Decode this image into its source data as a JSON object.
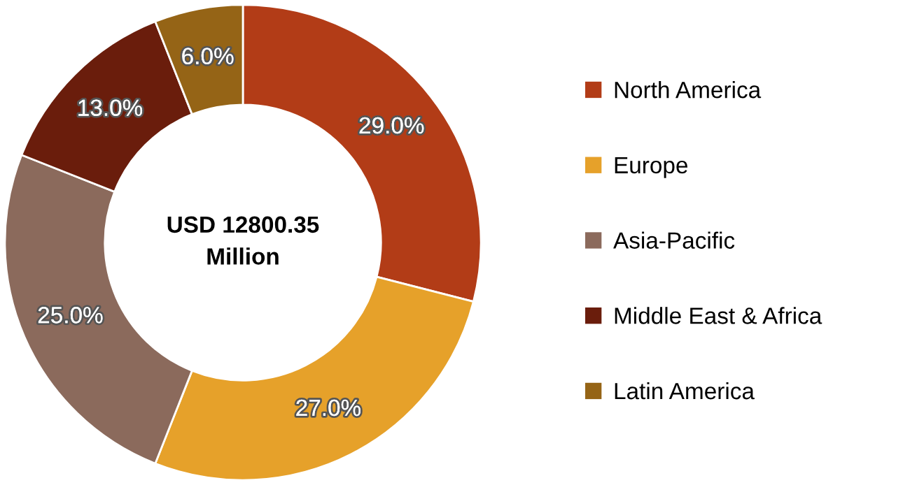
{
  "chart_data": {
    "type": "donut",
    "categories": [
      "North America",
      "Europe",
      "Asia-Pacific",
      "Middle East & Africa",
      "Latin America"
    ],
    "values": [
      29.0,
      27.0,
      25.0,
      13.0,
      6.0
    ],
    "colors": [
      "#b23c17",
      "#e6a12a",
      "#8b6a5c",
      "#6a1d0c",
      "#956416"
    ],
    "value_labels": [
      "29.0%",
      "27.0%",
      "25.0%",
      "13.0%",
      "6.0%"
    ],
    "annotations": [
      "USD 12800.35\nMillion"
    ],
    "legend": "right"
  }
}
